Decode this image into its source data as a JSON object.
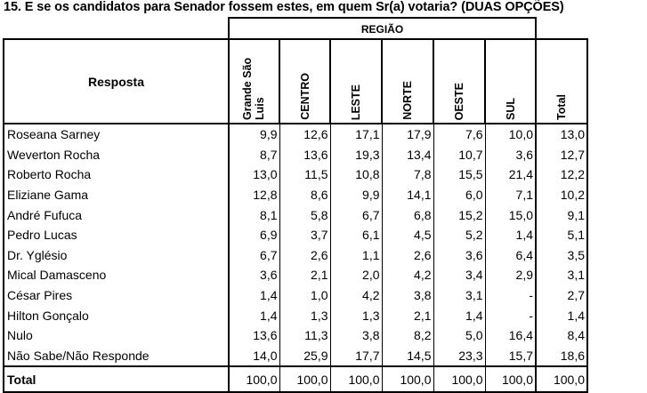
{
  "title": "15. E se os candidatos para Senador fossem estes, em quem Sr(a) votaria?  (DUAS OPÇÕES)",
  "group_header": "REGIÃO",
  "columns": [
    "Resposta",
    "Grande São Luis",
    "CENTRO",
    "LESTE",
    "NORTE",
    "OESTE",
    "SUL",
    "Total"
  ],
  "rows": [
    {
      "label": "Roseana Sarney",
      "values": [
        "9,9",
        "12,6",
        "17,1",
        "17,9",
        "7,6",
        "10,0",
        "13,0"
      ]
    },
    {
      "label": "Weverton Rocha",
      "values": [
        "8,7",
        "13,6",
        "19,3",
        "13,4",
        "10,7",
        "3,6",
        "12,7"
      ]
    },
    {
      "label": "Roberto Rocha",
      "values": [
        "13,0",
        "11,5",
        "10,8",
        "7,8",
        "15,5",
        "21,4",
        "12,2"
      ]
    },
    {
      "label": "Eliziane Gama",
      "values": [
        "12,8",
        "8,6",
        "9,9",
        "14,1",
        "6,0",
        "7,1",
        "10,2"
      ]
    },
    {
      "label": "André Fufuca",
      "values": [
        "8,1",
        "5,8",
        "6,7",
        "6,8",
        "15,2",
        "15,0",
        "9,1"
      ]
    },
    {
      "label": "Pedro Lucas",
      "values": [
        "6,9",
        "3,7",
        "6,1",
        "4,5",
        "5,2",
        "1,4",
        "5,1"
      ]
    },
    {
      "label": "Dr. Yglésio",
      "values": [
        "6,7",
        "2,6",
        "1,1",
        "2,6",
        "3,6",
        "6,4",
        "3,5"
      ]
    },
    {
      "label": "Mical Damasceno",
      "values": [
        "3,6",
        "2,1",
        "2,0",
        "4,2",
        "3,4",
        "2,9",
        "3,1"
      ]
    },
    {
      "label": "César Pires",
      "values": [
        "1,4",
        "1,0",
        "4,2",
        "3,8",
        "3,1",
        "-",
        "2,7"
      ]
    },
    {
      "label": "Hilton Gonçalo",
      "values": [
        "1,4",
        "1,3",
        "1,3",
        "2,1",
        "1,4",
        "-",
        "1,4"
      ]
    },
    {
      "label": "Nulo",
      "values": [
        "13,6",
        "11,3",
        "3,8",
        "8,2",
        "5,0",
        "16,4",
        "8,4"
      ]
    },
    {
      "label": "Não Sabe/Não Responde",
      "values": [
        "14,0",
        "25,9",
        "17,7",
        "14,5",
        "23,3",
        "15,7",
        "18,6"
      ]
    }
  ],
  "total_row": {
    "label": "Total",
    "values": [
      "100,0",
      "100,0",
      "100,0",
      "100,0",
      "100,0",
      "100,0",
      "100,0"
    ]
  }
}
